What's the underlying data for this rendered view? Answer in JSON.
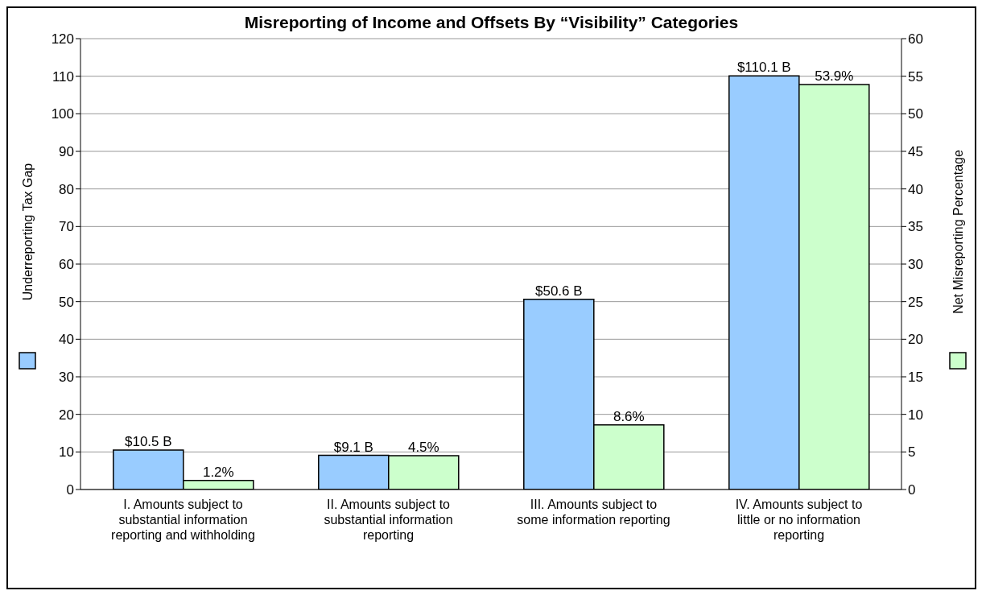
{
  "chart_data": {
    "type": "bar",
    "title": "Misreporting of Income and Offsets By “Visibility” Categories",
    "categories": [
      "I. Amounts subject to substantial information reporting and withholding",
      "II. Amounts subject to substantial information reporting",
      "III. Amounts subject to some information reporting",
      "IV. Amounts subject to little or no information reporting"
    ],
    "series": [
      {
        "color": "#99ccff",
        "values": [
          10.5,
          9.1,
          50.6,
          110.1
        ],
        "value_labels": [
          "$10.5 B",
          "$9.1 B",
          "$50.6 B",
          "$110.1 B"
        ]
      },
      {
        "color": "#ccffcc",
        "axis": "y2",
        "values": [
          1.2,
          4.5,
          8.6,
          53.9
        ],
        "value_labels": [
          "1.2%",
          "4.5%",
          "8.6%",
          "53.9%"
        ]
      }
    ],
    "ylabel": "Underreporting Tax Gap",
    "y2label": "Net Misreporting Percentage",
    "ylim": [
      0,
      120
    ],
    "yticks": [
      0,
      10,
      20,
      30,
      40,
      50,
      60,
      70,
      80,
      90,
      100,
      110,
      120
    ],
    "y2lim": [
      0,
      60
    ],
    "y2ticks": [
      0,
      5,
      10,
      15,
      20,
      25,
      30,
      35,
      40,
      45,
      50,
      55,
      60
    ],
    "grid": "y"
  }
}
